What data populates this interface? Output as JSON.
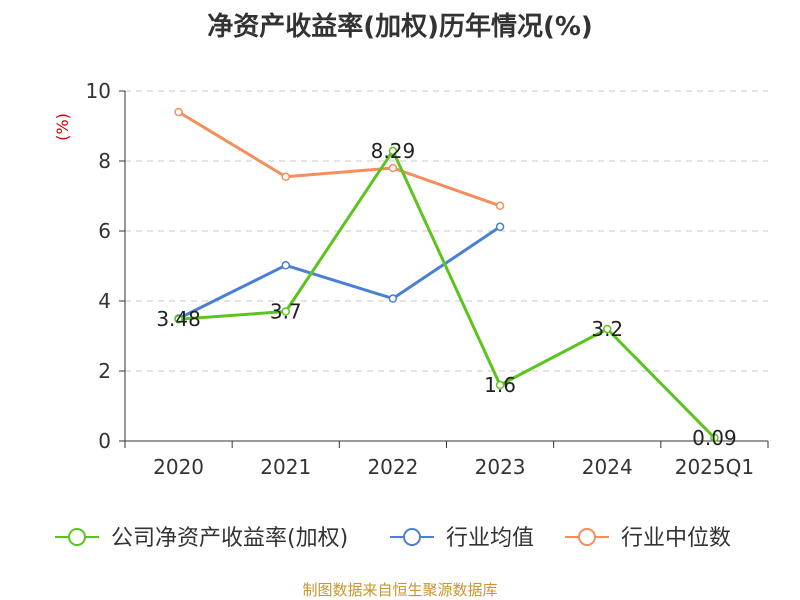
{
  "chart_data": {
    "type": "line",
    "title": "净资产收益率(加权)历年情况(%)",
    "ylabel": "(%)",
    "categories": [
      "2020",
      "2021",
      "2022",
      "2023",
      "2024",
      "2025Q1"
    ],
    "ylim": [
      0,
      10
    ],
    "yticks": [
      "0",
      "2",
      "4",
      "6",
      "8",
      "10"
    ],
    "grid": true,
    "legend_position": "bottom",
    "series": [
      {
        "name": "公司净资产收益率(加权)",
        "color": "#5cc41e",
        "values": [
          3.48,
          3.7,
          8.29,
          1.6,
          3.2,
          0.09
        ],
        "labels": [
          "3.48",
          "3.7",
          "8.29",
          "1.6",
          "3.2",
          "0.09"
        ]
      },
      {
        "name": "行业均值",
        "color": "#4a7fd6",
        "values": [
          3.5,
          5.02,
          4.07,
          6.12,
          null,
          null
        ]
      },
      {
        "name": "行业中位数",
        "color": "#f58d5c",
        "values": [
          9.4,
          7.55,
          7.8,
          6.72,
          null,
          null
        ]
      }
    ]
  },
  "footer": "制图数据来自恒生聚源数据库"
}
